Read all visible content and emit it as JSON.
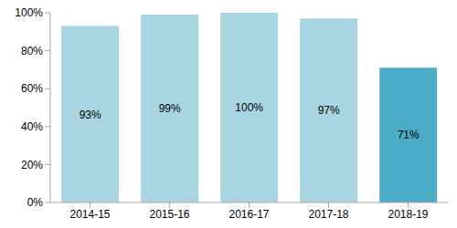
{
  "chart_data": {
    "type": "bar",
    "categories": [
      "2014-15",
      "2015-16",
      "2016-17",
      "2017-18",
      "2018-19"
    ],
    "values": [
      93,
      99,
      100,
      97,
      71
    ],
    "value_labels": [
      "93%",
      "99%",
      "100%",
      "97%",
      "71%"
    ],
    "colors": [
      "#a9d5e3",
      "#a9d5e3",
      "#a9d5e3",
      "#a9d5e3",
      "#4aacc6"
    ],
    "ylim": [
      0,
      100
    ],
    "yticks": [
      {
        "value": 0,
        "label": "0%"
      },
      {
        "value": 20,
        "label": "20%"
      },
      {
        "value": 40,
        "label": "40%"
      },
      {
        "value": 60,
        "label": "60%"
      },
      {
        "value": 80,
        "label": "80%"
      },
      {
        "value": 100,
        "label": "100%"
      }
    ],
    "grid": false,
    "data_labels": true
  }
}
